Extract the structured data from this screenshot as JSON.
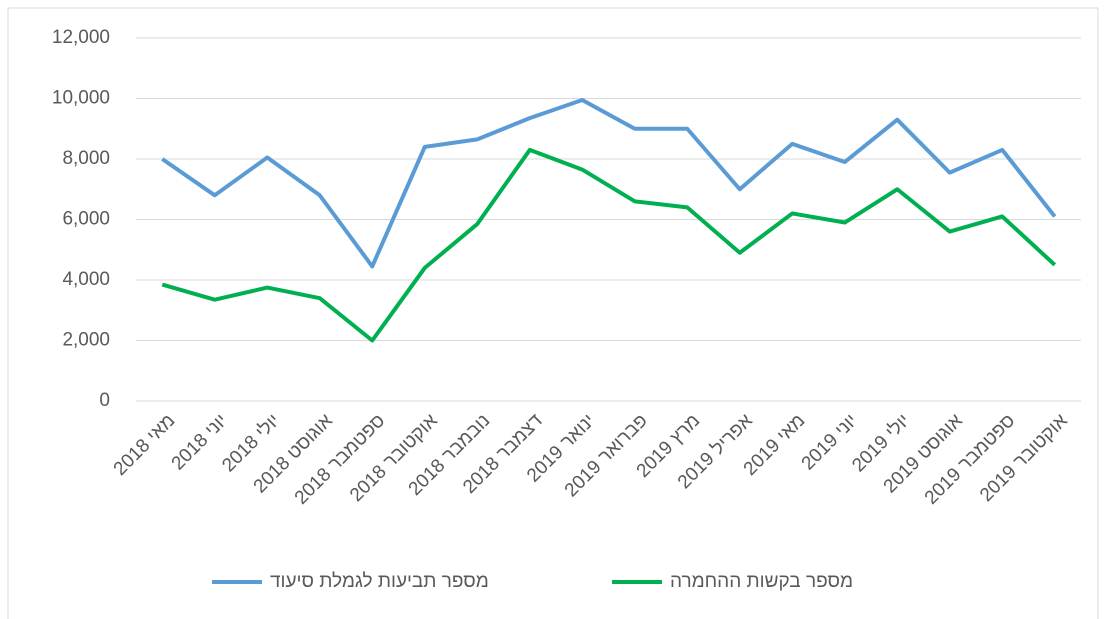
{
  "chart_data": {
    "type": "line",
    "categories": [
      "מאי 2018",
      "יוני 2018",
      "יולי 2018",
      "אוגוסט 2018",
      "ספטמבר 2018",
      "אוקטובר 2018",
      "נובמבר 2018",
      "דצמבר 2018",
      "ינואר 2019",
      "פברואר 2019",
      "מרץ 2019",
      "אפריל 2019",
      "מאי 2019",
      "יוני 2019",
      "יולי 2019",
      "אוגוסט 2019",
      "ספטמבר 2019",
      "אוקטובר 2019"
    ],
    "series": [
      {
        "name": "מספר תביעות לגמלת סיעוד",
        "color": "#5b9bd5",
        "values": [
          8000,
          6800,
          8050,
          6800,
          4450,
          8400,
          8650,
          9350,
          9950,
          9000,
          9000,
          7000,
          8500,
          7900,
          9300,
          7550,
          8300,
          6100
        ]
      },
      {
        "name": "מספר בקשות ההחמרה",
        "color": "#00b050",
        "values": [
          3850,
          3350,
          3750,
          3400,
          2000,
          4400,
          5850,
          8300,
          7650,
          6600,
          6400,
          4900,
          6200,
          5900,
          7000,
          5600,
          6100,
          4500
        ]
      }
    ],
    "ylim": [
      0,
      12000
    ],
    "yticks": [
      0,
      {
        "value": 2000,
        "label": "2,000"
      },
      {
        "value": 4000,
        "label": "4,000"
      },
      {
        "value": 6000,
        "label": "6,000"
      },
      {
        "value": 8000,
        "label": "8,000"
      },
      {
        "value": 10000,
        "label": "10,000"
      },
      {
        "value": 12000,
        "label": "12,000"
      }
    ],
    "grid": true,
    "legend": "bottom"
  }
}
